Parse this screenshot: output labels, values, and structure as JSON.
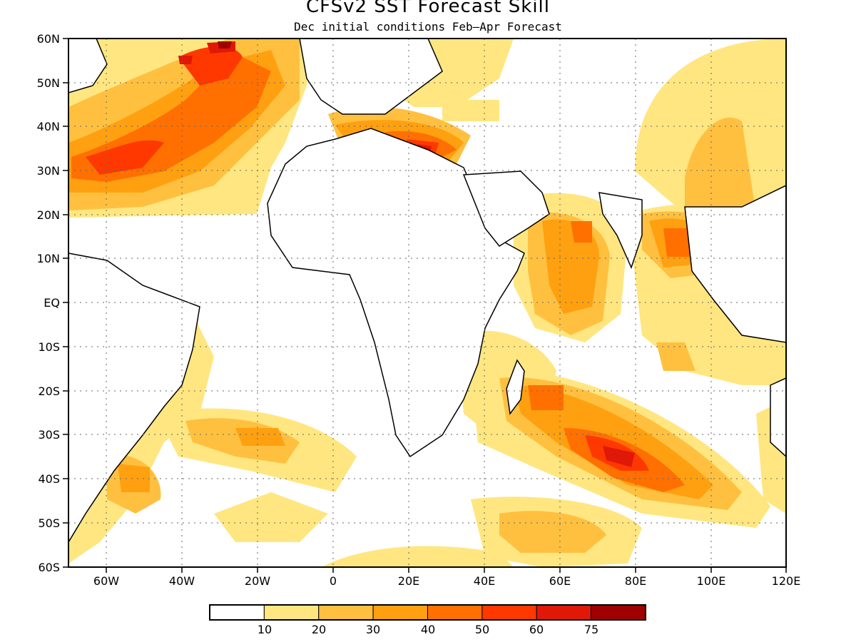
{
  "title": "CFSv2 SST Forecast Skill",
  "subtitle": "Dec initial conditions  Feb–Apr Forecast",
  "map": {
    "lon_range": [
      -70,
      120
    ],
    "lat_range": [
      -60,
      60
    ],
    "lat_ticks": [
      "60N",
      "50N",
      "40N",
      "30N",
      "20N",
      "10N",
      "EQ",
      "10S",
      "20S",
      "30S",
      "40S",
      "50S",
      "60S"
    ],
    "lon_ticks": [
      "60W",
      "40W",
      "20W",
      "0",
      "20E",
      "40E",
      "60E",
      "80E",
      "100E",
      "120E"
    ]
  },
  "colorbar": {
    "colors": [
      "#ffffff",
      "#ffe680",
      "#ffc040",
      "#ffa010",
      "#ff7000",
      "#ff3800",
      "#e01808",
      "#a00000"
    ],
    "labels": [
      "10",
      "20",
      "30",
      "40",
      "50",
      "60",
      "75"
    ]
  }
}
